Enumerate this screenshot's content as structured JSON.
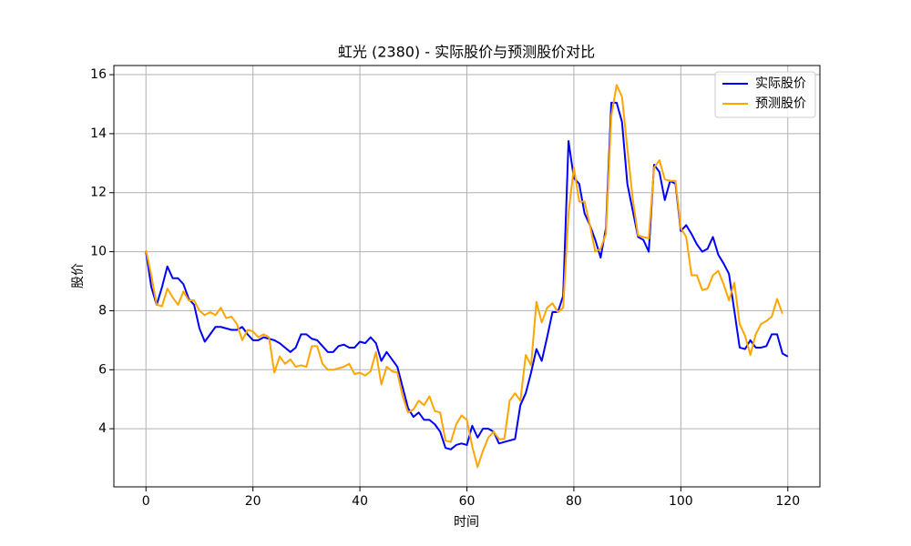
{
  "chart_data": {
    "type": "line",
    "title": "虹光 (2380) - 实际股价与预测股价对比",
    "xlabel": "时间",
    "ylabel": "股价",
    "x": [
      0,
      1,
      2,
      3,
      4,
      5,
      6,
      7,
      8,
      9,
      10,
      11,
      12,
      13,
      14,
      15,
      16,
      17,
      18,
      19,
      20,
      21,
      22,
      23,
      24,
      25,
      26,
      27,
      28,
      29,
      30,
      31,
      32,
      33,
      34,
      35,
      36,
      37,
      38,
      39,
      40,
      41,
      42,
      43,
      44,
      45,
      46,
      47,
      48,
      49,
      50,
      51,
      52,
      53,
      54,
      55,
      56,
      57,
      58,
      59,
      60,
      61,
      62,
      63,
      64,
      65,
      66,
      67,
      68,
      69,
      70,
      71,
      72,
      73,
      74,
      75,
      76,
      77,
      78,
      79,
      80,
      81,
      82,
      83,
      84,
      85,
      86,
      87,
      88,
      89,
      90,
      91,
      92,
      93,
      94,
      95,
      96,
      97,
      98,
      99,
      100,
      101,
      102,
      103,
      104,
      105,
      106,
      107,
      108,
      109,
      110,
      111,
      112,
      113,
      114,
      115,
      116,
      117,
      118,
      119,
      120
    ],
    "series": [
      {
        "name": "实际股价",
        "color": "#0000ff",
        "values": [
          10.0,
          8.8,
          8.2,
          8.8,
          9.5,
          9.1,
          9.1,
          8.9,
          8.4,
          8.2,
          7.4,
          6.95,
          7.2,
          7.45,
          7.45,
          7.4,
          7.35,
          7.35,
          7.45,
          7.2,
          7.0,
          7.0,
          7.1,
          7.05,
          7.0,
          6.9,
          6.75,
          6.6,
          6.75,
          7.2,
          7.2,
          7.05,
          7.0,
          6.8,
          6.6,
          6.6,
          6.8,
          6.85,
          6.75,
          6.75,
          6.95,
          6.9,
          7.1,
          6.9,
          6.3,
          6.6,
          6.35,
          6.1,
          5.4,
          4.7,
          4.4,
          4.55,
          4.3,
          4.3,
          4.15,
          3.9,
          3.35,
          3.3,
          3.45,
          3.5,
          3.45,
          4.1,
          3.7,
          4.0,
          4.0,
          3.9,
          3.5,
          3.55,
          3.6,
          3.65,
          4.8,
          5.2,
          5.9,
          6.7,
          6.3,
          7.1,
          7.95,
          7.95,
          8.5,
          13.75,
          12.5,
          12.3,
          11.3,
          10.9,
          10.4,
          9.8,
          10.8,
          15.05,
          15.05,
          14.4,
          12.3,
          11.4,
          10.5,
          10.4,
          10.0,
          12.95,
          12.7,
          11.75,
          12.4,
          12.3,
          10.7,
          10.9,
          10.6,
          10.25,
          10.0,
          10.1,
          10.5,
          9.9,
          9.6,
          9.25,
          8.0,
          6.75,
          6.7,
          7.0,
          6.75,
          6.75,
          6.8,
          7.2,
          7.2,
          6.55,
          6.45
        ]
      },
      {
        "name": "预测股价",
        "color": "#ffa500",
        "values": [
          10.05,
          9.2,
          8.2,
          8.15,
          8.75,
          8.45,
          8.2,
          8.65,
          8.35,
          8.35,
          8.0,
          7.85,
          7.95,
          7.85,
          8.1,
          7.75,
          7.8,
          7.55,
          7.0,
          7.35,
          7.3,
          7.1,
          7.2,
          7.1,
          5.9,
          6.45,
          6.2,
          6.35,
          6.1,
          6.15,
          6.1,
          6.8,
          6.8,
          6.2,
          6.0,
          6.0,
          6.05,
          6.1,
          6.2,
          5.85,
          5.9,
          5.8,
          5.95,
          6.6,
          5.5,
          6.1,
          5.95,
          5.9,
          5.1,
          4.55,
          4.65,
          4.95,
          4.8,
          5.1,
          4.6,
          4.55,
          3.6,
          3.55,
          4.15,
          4.45,
          4.3,
          3.4,
          2.7,
          3.25,
          3.7,
          3.9,
          3.65,
          3.65,
          4.95,
          5.2,
          4.95,
          6.5,
          6.15,
          8.3,
          7.6,
          8.1,
          8.25,
          7.95,
          8.1,
          11.3,
          12.85,
          11.7,
          11.7,
          10.9,
          10.0,
          10.1,
          10.6,
          14.6,
          15.65,
          15.25,
          13.5,
          11.8,
          10.55,
          10.5,
          10.45,
          12.85,
          13.1,
          12.45,
          12.4,
          12.4,
          10.8,
          10.5,
          9.2,
          9.2,
          8.7,
          8.75,
          9.2,
          9.35,
          8.9,
          8.35,
          8.95,
          7.55,
          7.15,
          6.5,
          7.2,
          7.55,
          7.65,
          7.8,
          8.4,
          7.9,
          null
        ]
      }
    ],
    "xlim": [
      -6,
      126
    ],
    "ylim": [
      2.03,
      16.31
    ],
    "xticks": [
      0,
      20,
      40,
      60,
      80,
      100,
      120
    ],
    "yticks": [
      4,
      6,
      8,
      10,
      12,
      14,
      16
    ],
    "grid": true,
    "legend": "upper right"
  }
}
